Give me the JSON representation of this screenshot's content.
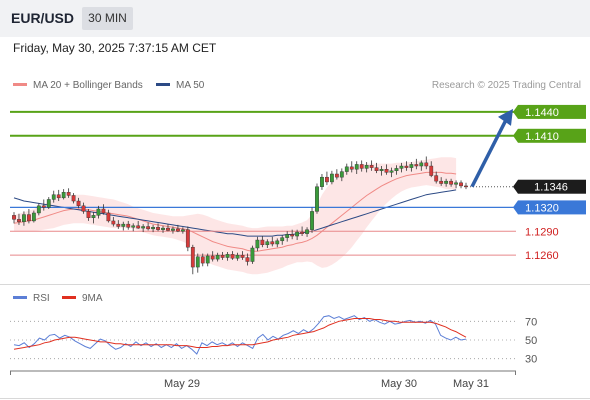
{
  "header": {
    "symbol": "EUR/USD",
    "timeframe": "30 MIN",
    "datetime": "Friday, May 30, 2025 7:37:15 AM CET"
  },
  "legend": {
    "bb_label": "MA 20 + Bollinger Bands",
    "bb_color": "#f08a86",
    "ma50_label": "MA 50",
    "ma50_color": "#2c4a85",
    "watermark": "Research © 2025 Trading Central"
  },
  "rsi_legend": {
    "rsi_label": "RSI",
    "rsi_color": "#5c7fd6",
    "ma_label": "9MA",
    "ma_color": "#e03020"
  },
  "colors": {
    "up_candle": "#3a9a3a",
    "down_candle": "#d63a3a",
    "target_line": "#58a318",
    "pivot_line": "#3a78d8",
    "support_line": "#e8888a",
    "support_text": "#d02020",
    "arrow": "#2f5fa8",
    "band_fill": "#fde3e3"
  },
  "chart_data": [
    {
      "type": "candlestick",
      "title": "EUR/USD",
      "x_ticks": [
        "May 29",
        "May 30",
        "May 31"
      ],
      "ylim": [
        1.1225,
        1.146
      ],
      "current_price": 1.1346,
      "levels": [
        {
          "value": 1.144,
          "label": "1.1440",
          "kind": "target"
        },
        {
          "value": 1.141,
          "label": "1.1410",
          "kind": "target"
        },
        {
          "value": 1.1346,
          "label": "1.1346",
          "kind": "last"
        },
        {
          "value": 1.132,
          "label": "1.1320",
          "kind": "pivot"
        },
        {
          "value": 1.129,
          "label": "1.1290",
          "kind": "support"
        },
        {
          "value": 1.126,
          "label": "1.1260",
          "kind": "support"
        }
      ],
      "ohlc": [
        [
          1.131,
          1.1314,
          1.13,
          1.1305
        ],
        [
          1.1305,
          1.1312,
          1.1298,
          1.1302
        ],
        [
          1.1302,
          1.1315,
          1.1297,
          1.1311
        ],
        [
          1.1311,
          1.1318,
          1.13,
          1.1303
        ],
        [
          1.1303,
          1.1316,
          1.1301,
          1.1313
        ],
        [
          1.1313,
          1.1325,
          1.131,
          1.1322
        ],
        [
          1.1322,
          1.133,
          1.1316,
          1.132
        ],
        [
          1.132,
          1.1333,
          1.1318,
          1.133
        ],
        [
          1.133,
          1.1341,
          1.1326,
          1.1336
        ],
        [
          1.1336,
          1.1342,
          1.1328,
          1.1332
        ],
        [
          1.1332,
          1.1343,
          1.133,
          1.1339
        ],
        [
          1.1339,
          1.1344,
          1.1332,
          1.1335
        ],
        [
          1.1335,
          1.1338,
          1.1325,
          1.1328
        ],
        [
          1.1328,
          1.1332,
          1.1319,
          1.1322
        ],
        [
          1.1322,
          1.1326,
          1.1312,
          1.1315
        ],
        [
          1.1315,
          1.1318,
          1.1303,
          1.1307
        ],
        [
          1.1307,
          1.1314,
          1.13,
          1.131
        ],
        [
          1.131,
          1.1322,
          1.1306,
          1.1318
        ],
        [
          1.1318,
          1.1324,
          1.1311,
          1.1313
        ],
        [
          1.1313,
          1.1317,
          1.1301,
          1.1303
        ],
        [
          1.1303,
          1.1308,
          1.1296,
          1.1299
        ],
        [
          1.1299,
          1.1304,
          1.1293,
          1.1296
        ],
        [
          1.1296,
          1.1302,
          1.1291,
          1.1299
        ],
        [
          1.1299,
          1.1303,
          1.1292,
          1.1295
        ],
        [
          1.1295,
          1.13,
          1.129,
          1.1297
        ],
        [
          1.1297,
          1.1303,
          1.1293,
          1.1294
        ],
        [
          1.1294,
          1.1299,
          1.1289,
          1.1296
        ],
        [
          1.1296,
          1.1301,
          1.1291,
          1.1293
        ],
        [
          1.1293,
          1.1298,
          1.1289,
          1.1295
        ],
        [
          1.1295,
          1.13,
          1.129,
          1.1292
        ],
        [
          1.1292,
          1.1297,
          1.1288,
          1.1294
        ],
        [
          1.1294,
          1.1299,
          1.129,
          1.1291
        ],
        [
          1.1291,
          1.1296,
          1.1287,
          1.1293
        ],
        [
          1.1293,
          1.1298,
          1.1289,
          1.129
        ],
        [
          1.129,
          1.1295,
          1.1287,
          1.1292
        ],
        [
          1.1292,
          1.1296,
          1.1265,
          1.127
        ],
        [
          1.127,
          1.1273,
          1.1236,
          1.1245
        ],
        [
          1.1245,
          1.1262,
          1.1238,
          1.1258
        ],
        [
          1.1258,
          1.1262,
          1.1246,
          1.125
        ],
        [
          1.125,
          1.1262,
          1.1246,
          1.1259
        ],
        [
          1.1259,
          1.1265,
          1.1252,
          1.1255
        ],
        [
          1.1255,
          1.1263,
          1.1252,
          1.126
        ],
        [
          1.126,
          1.1264,
          1.1254,
          1.1257
        ],
        [
          1.1257,
          1.1264,
          1.1253,
          1.1261
        ],
        [
          1.1261,
          1.1265,
          1.1254,
          1.1256
        ],
        [
          1.1256,
          1.1263,
          1.1253,
          1.126
        ],
        [
          1.126,
          1.1265,
          1.1254,
          1.1257
        ],
        [
          1.1257,
          1.1262,
          1.1247,
          1.1252
        ],
        [
          1.1252,
          1.1272,
          1.1249,
          1.1269
        ],
        [
          1.1269,
          1.1283,
          1.1265,
          1.1279
        ],
        [
          1.1279,
          1.1284,
          1.127,
          1.1273
        ],
        [
          1.1273,
          1.128,
          1.1269,
          1.1277
        ],
        [
          1.1277,
          1.1283,
          1.1271,
          1.1274
        ],
        [
          1.1274,
          1.1281,
          1.127,
          1.1278
        ],
        [
          1.1278,
          1.1285,
          1.1273,
          1.1282
        ],
        [
          1.1282,
          1.129,
          1.1277,
          1.1286
        ],
        [
          1.1286,
          1.1292,
          1.128,
          1.1284
        ],
        [
          1.1284,
          1.1292,
          1.1279,
          1.1289
        ],
        [
          1.1289,
          1.1296,
          1.1284,
          1.1287
        ],
        [
          1.1287,
          1.1295,
          1.1283,
          1.1292
        ],
        [
          1.1292,
          1.132,
          1.1288,
          1.1315
        ],
        [
          1.1315,
          1.135,
          1.1312,
          1.1346
        ],
        [
          1.1346,
          1.1362,
          1.1342,
          1.1358
        ],
        [
          1.1358,
          1.1365,
          1.1348,
          1.1352
        ],
        [
          1.1352,
          1.1366,
          1.1349,
          1.1362
        ],
        [
          1.1362,
          1.1368,
          1.1355,
          1.1358
        ],
        [
          1.1358,
          1.1369,
          1.1353,
          1.1365
        ],
        [
          1.1365,
          1.1375,
          1.1361,
          1.1371
        ],
        [
          1.1371,
          1.1378,
          1.1364,
          1.1368
        ],
        [
          1.1368,
          1.1378,
          1.1362,
          1.1374
        ],
        [
          1.1374,
          1.1379,
          1.1365,
          1.1369
        ],
        [
          1.1369,
          1.1377,
          1.1364,
          1.1373
        ],
        [
          1.1373,
          1.1379,
          1.1366,
          1.137
        ],
        [
          1.137,
          1.1376,
          1.1363,
          1.1366
        ],
        [
          1.1366,
          1.1372,
          1.136,
          1.1368
        ],
        [
          1.1368,
          1.1374,
          1.1361,
          1.1364
        ],
        [
          1.1364,
          1.137,
          1.1358,
          1.1366
        ],
        [
          1.1366,
          1.1373,
          1.1361,
          1.1369
        ],
        [
          1.1369,
          1.1376,
          1.1364,
          1.1372
        ],
        [
          1.1372,
          1.1378,
          1.1366,
          1.137
        ],
        [
          1.137,
          1.1377,
          1.1365,
          1.1374
        ],
        [
          1.1374,
          1.1381,
          1.1368,
          1.1372
        ],
        [
          1.1372,
          1.1379,
          1.1366,
          1.1376
        ],
        [
          1.1376,
          1.1384,
          1.1368,
          1.1372
        ],
        [
          1.1372,
          1.1378,
          1.1358,
          1.136
        ],
        [
          1.136,
          1.1365,
          1.135,
          1.1353
        ],
        [
          1.1353,
          1.1358,
          1.1347,
          1.135
        ],
        [
          1.135,
          1.1356,
          1.1346,
          1.1353
        ],
        [
          1.1353,
          1.1356,
          1.1346,
          1.1349
        ],
        [
          1.1349,
          1.1354,
          1.1344,
          1.1351
        ],
        [
          1.1351,
          1.1354,
          1.1344,
          1.1347
        ],
        [
          1.1347,
          1.1351,
          1.1343,
          1.1346
        ]
      ],
      "ma20": [
        1.13,
        1.1301,
        1.1302,
        1.1303,
        1.1304,
        1.1306,
        1.1308,
        1.131,
        1.1312,
        1.1314,
        1.1316,
        1.1317,
        1.1318,
        1.1318,
        1.1318,
        1.1317,
        1.1316,
        1.1315,
        1.1314,
        1.1313,
        1.1312,
        1.1311,
        1.131,
        1.1309,
        1.1307,
        1.1305,
        1.1303,
        1.1301,
        1.1299,
        1.1298,
        1.1297,
        1.1296,
        1.1295,
        1.1294,
        1.1293,
        1.1292,
        1.1289,
        1.1286,
        1.1283,
        1.128,
        1.1277,
        1.1275,
        1.1273,
        1.1271,
        1.127,
        1.1269,
        1.1268,
        1.1266,
        1.1265,
        1.1265,
        1.1266,
        1.1267,
        1.1268,
        1.1269,
        1.127,
        1.1272,
        1.1273,
        1.1275,
        1.1276,
        1.1278,
        1.1281,
        1.1285,
        1.129,
        1.1295,
        1.13,
        1.1305,
        1.131,
        1.1315,
        1.132,
        1.1325,
        1.133,
        1.1335,
        1.1339,
        1.1343,
        1.1347,
        1.135,
        1.1353,
        1.1356,
        1.1358,
        1.136,
        1.1361,
        1.1362,
        1.1363,
        1.1364,
        1.1364,
        1.1364,
        1.1364,
        1.1363,
        1.1363,
        1.1362
      ],
      "bb_width": [
        0.001,
        0.0011,
        0.0012,
        0.0013,
        0.0014,
        0.0015,
        0.0016,
        0.0017,
        0.0018,
        0.0018,
        0.0018,
        0.0018,
        0.0018,
        0.0018,
        0.0018,
        0.0018,
        0.0018,
        0.0018,
        0.0018,
        0.0018,
        0.0018,
        0.0017,
        0.0016,
        0.0015,
        0.0014,
        0.0014,
        0.0014,
        0.0014,
        0.0014,
        0.0014,
        0.0014,
        0.0014,
        0.0014,
        0.0015,
        0.0016,
        0.0018,
        0.0022,
        0.0026,
        0.0028,
        0.0029,
        0.0029,
        0.0029,
        0.0029,
        0.0029,
        0.0029,
        0.0029,
        0.0029,
        0.0029,
        0.0029,
        0.0029,
        0.0029,
        0.0029,
        0.0028,
        0.0027,
        0.0026,
        0.0025,
        0.0024,
        0.0024,
        0.0025,
        0.0026,
        0.003,
        0.0038,
        0.0046,
        0.005,
        0.0052,
        0.0053,
        0.0053,
        0.0052,
        0.005,
        0.0047,
        0.0044,
        0.004,
        0.0036,
        0.0032,
        0.0028,
        0.0025,
        0.0022,
        0.002,
        0.0018,
        0.0017,
        0.0016,
        0.0016,
        0.0016,
        0.0016,
        0.0017,
        0.0018,
        0.0019,
        0.002,
        0.002,
        0.002
      ],
      "ma50": [
        1.1332,
        1.133,
        1.1328,
        1.1327,
        1.1326,
        1.1325,
        1.1324,
        1.1323,
        1.1322,
        1.1321,
        1.132,
        1.1319,
        1.1318,
        1.1317,
        1.1316,
        1.1315,
        1.1314,
        1.1313,
        1.1312,
        1.1311,
        1.131,
        1.1309,
        1.1308,
        1.1307,
        1.1306,
        1.1305,
        1.1304,
        1.1303,
        1.1302,
        1.1301,
        1.13,
        1.1299,
        1.1298,
        1.1297,
        1.1296,
        1.1295,
        1.1294,
        1.1293,
        1.1292,
        1.1291,
        1.129,
        1.1289,
        1.1288,
        1.1287,
        1.1287,
        1.1286,
        1.1285,
        1.1284,
        1.1284,
        1.1284,
        1.1284,
        1.1284,
        1.1284,
        1.1285,
        1.1285,
        1.1286,
        1.1286,
        1.1287,
        1.1288,
        1.1289,
        1.129,
        1.1292,
        1.1294,
        1.1296,
        1.1298,
        1.13,
        1.1302,
        1.1304,
        1.1306,
        1.1308,
        1.131,
        1.1312,
        1.1314,
        1.1316,
        1.1318,
        1.132,
        1.1322,
        1.1324,
        1.1326,
        1.1328,
        1.133,
        1.1332,
        1.1334,
        1.1336,
        1.1337,
        1.1338,
        1.1339,
        1.134,
        1.1341,
        1.1342
      ],
      "projection": {
        "from": 1.1346,
        "to": 1.144
      }
    },
    {
      "type": "line",
      "title": "RSI",
      "ylim": [
        20,
        80
      ],
      "y_ticks": [
        70,
        50,
        30
      ],
      "series": [
        {
          "name": "RSI",
          "values": [
            45,
            44,
            47,
            42,
            46,
            52,
            50,
            55,
            56,
            52,
            55,
            53,
            49,
            46,
            43,
            41,
            46,
            51,
            49,
            44,
            40,
            42,
            46,
            43,
            48,
            44,
            47,
            43,
            46,
            42,
            45,
            42,
            46,
            41,
            44,
            40,
            35,
            47,
            44,
            48,
            45,
            47,
            44,
            47,
            43,
            47,
            44,
            41,
            52,
            56,
            50,
            54,
            51,
            55,
            57,
            60,
            57,
            61,
            58,
            62,
            68,
            75,
            76,
            73,
            75,
            72,
            74,
            76,
            72,
            74,
            70,
            72,
            69,
            67,
            70,
            67,
            68,
            70,
            71,
            69,
            70,
            68,
            71,
            67,
            55,
            52,
            50,
            53,
            50,
            51
          ]
        },
        {
          "name": "9MA",
          "values": [
            40,
            41,
            42,
            43,
            44,
            45,
            47,
            48,
            50,
            51,
            52,
            53,
            53,
            52,
            51,
            50,
            49,
            48,
            48,
            47,
            46,
            46,
            45,
            45,
            45,
            45,
            45,
            45,
            45,
            45,
            45,
            45,
            44,
            44,
            44,
            43,
            42,
            42,
            42,
            43,
            43,
            44,
            44,
            45,
            45,
            45,
            45,
            45,
            46,
            47,
            48,
            50,
            51,
            52,
            53,
            55,
            56,
            57,
            58,
            59,
            61,
            63,
            66,
            68,
            70,
            71,
            72,
            73,
            73,
            73,
            73,
            72,
            72,
            71,
            70,
            70,
            69,
            69,
            69,
            69,
            69,
            69,
            69,
            68,
            66,
            64,
            61,
            59,
            56,
            53
          ]
        }
      ]
    }
  ]
}
